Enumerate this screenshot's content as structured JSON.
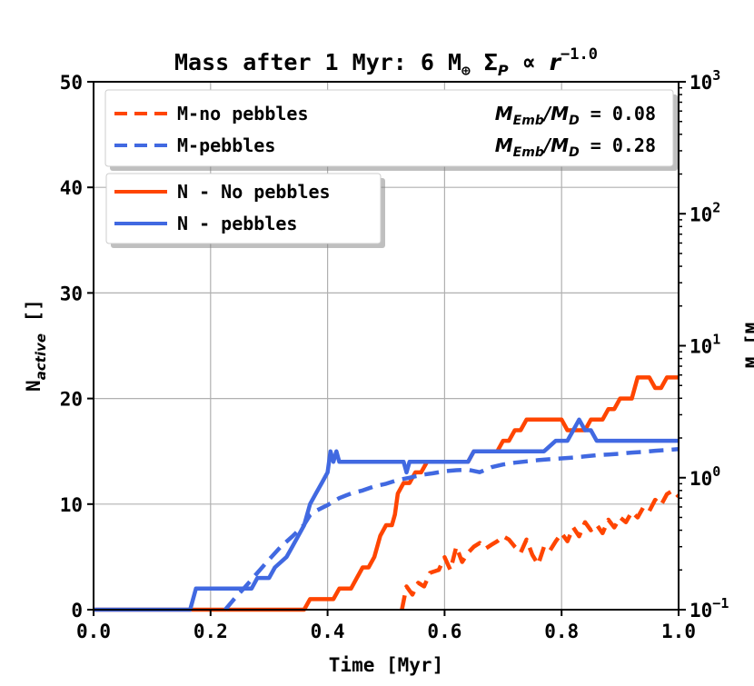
{
  "chart_data": {
    "type": "line",
    "title": {
      "prefix": "Mass after 1 Myr: 6 M",
      "sub": "⊕",
      "mid": " Σ",
      "sigma_sub": "P",
      "propto": " ∝ ",
      "var": "r",
      "exponent": "−1.0"
    },
    "xlabel": "Time [Myr]",
    "ylabel": {
      "main": "N",
      "sub": "active",
      "unit": " []"
    },
    "y2label": "M [M",
    "xlim": [
      0.0,
      1.0
    ],
    "ylim": [
      0,
      50
    ],
    "y2lim": [
      0.1,
      1000
    ],
    "y2scale": "log",
    "grid": true,
    "x_ticks": [
      "0.0",
      "0.2",
      "0.4",
      "0.6",
      "0.8",
      "1.0"
    ],
    "y_ticks": [
      "0",
      "10",
      "20",
      "30",
      "40",
      "50"
    ],
    "y2_ticks": [
      {
        "base": "10",
        "exp": "−1"
      },
      {
        "base": "10",
        "exp": "0"
      },
      {
        "base": "10",
        "exp": "1"
      },
      {
        "base": "10",
        "exp": "2"
      },
      {
        "base": "10",
        "exp": "3"
      }
    ],
    "colors": {
      "no_pebbles": "#ff4500",
      "pebbles": "#4169e1"
    },
    "legend_mass": {
      "placement": "top-left",
      "entries": [
        {
          "label": "M-no pebbles",
          "color": "#ff4500",
          "ratio_value": "0.08"
        },
        {
          "label": "M-pebbles",
          "color": "#4169e1",
          "ratio_value": "0.28"
        }
      ],
      "ratio_prefix": "M",
      "ratio_num_sub": "Emb",
      "ratio_den": "/M",
      "ratio_den_sub": "D",
      "ratio_eq": " = "
    },
    "legend_n": {
      "placement": "upper-left",
      "entries": [
        {
          "label": "N - No pebbles",
          "color": "#ff4500"
        },
        {
          "label": "N - pebbles",
          "color": "#4169e1"
        }
      ]
    },
    "series": [
      {
        "name": "N - No pebbles",
        "axis": "left",
        "style": "solid",
        "color": "#ff4500",
        "x": [
          0,
          0.36,
          0.37,
          0.41,
          0.42,
          0.44,
          0.45,
          0.46,
          0.47,
          0.48,
          0.49,
          0.5,
          0.51,
          0.515,
          0.52,
          0.53,
          0.54,
          0.55,
          0.56,
          0.57,
          0.58,
          0.59,
          0.64,
          0.65,
          0.69,
          0.7,
          0.71,
          0.72,
          0.73,
          0.74,
          0.8,
          0.81,
          0.84,
          0.85,
          0.87,
          0.88,
          0.89,
          0.9,
          0.92,
          0.93,
          0.95,
          0.96,
          0.97,
          0.98,
          1.0
        ],
        "y": [
          0,
          0,
          1,
          1,
          2,
          2,
          3,
          4,
          4,
          5,
          7,
          8,
          8,
          9,
          11,
          12,
          12,
          13,
          13,
          14,
          14,
          14,
          14,
          15,
          15,
          16,
          16,
          17,
          17,
          18,
          18,
          17,
          17,
          18,
          18,
          19,
          19,
          20,
          20,
          22,
          22,
          21,
          21,
          22,
          22
        ]
      },
      {
        "name": "N - pebbles",
        "axis": "left",
        "style": "solid",
        "color": "#4169e1",
        "x": [
          0,
          0.165,
          0.175,
          0.24,
          0.25,
          0.27,
          0.28,
          0.3,
          0.31,
          0.33,
          0.34,
          0.35,
          0.36,
          0.37,
          0.38,
          0.39,
          0.4,
          0.405,
          0.41,
          0.415,
          0.42,
          0.43,
          0.53,
          0.535,
          0.54,
          0.545,
          0.55,
          0.64,
          0.65,
          0.76,
          0.77,
          0.79,
          0.8,
          0.81,
          0.82,
          0.83,
          0.84,
          0.85,
          0.86,
          0.87,
          0.88,
          1.0
        ],
        "y": [
          0,
          0,
          2,
          2,
          2,
          2,
          3,
          3,
          4,
          5,
          6,
          7,
          8,
          10,
          11,
          12,
          13,
          15,
          14,
          15,
          14,
          14,
          14,
          13,
          14,
          14,
          14,
          14,
          15,
          15,
          15,
          16,
          16,
          16,
          17,
          18,
          17,
          17,
          16,
          16,
          16,
          16
        ]
      },
      {
        "name": "M-pebbles",
        "axis": "right",
        "style": "dashed",
        "color": "#4169e1",
        "x": [
          0.225,
          0.24,
          0.26,
          0.28,
          0.3,
          0.32,
          0.34,
          0.36,
          0.37,
          0.38,
          0.4,
          0.42,
          0.44,
          0.46,
          0.48,
          0.5,
          0.52,
          0.54,
          0.56,
          0.58,
          0.6,
          0.62,
          0.64,
          0.66,
          0.68,
          0.7,
          0.72,
          0.74,
          0.76,
          0.78,
          0.8,
          0.82,
          0.84,
          0.86,
          0.88,
          0.9,
          0.92,
          0.94,
          0.96,
          0.98,
          1.0
        ],
        "y": [
          0.1,
          0.12,
          0.15,
          0.19,
          0.24,
          0.3,
          0.36,
          0.44,
          0.52,
          0.56,
          0.62,
          0.7,
          0.76,
          0.8,
          0.86,
          0.9,
          0.96,
          1.0,
          1.05,
          1.08,
          1.12,
          1.14,
          1.15,
          1.1,
          1.2,
          1.26,
          1.3,
          1.33,
          1.36,
          1.38,
          1.4,
          1.42,
          1.45,
          1.48,
          1.5,
          1.52,
          1.55,
          1.57,
          1.6,
          1.62,
          1.65
        ]
      },
      {
        "name": "M-no pebbles",
        "axis": "right",
        "style": "dashed",
        "color": "#ff4500",
        "x": [
          0.527,
          0.535,
          0.545,
          0.555,
          0.565,
          0.575,
          0.59,
          0.6,
          0.61,
          0.62,
          0.63,
          0.64,
          0.65,
          0.66,
          0.67,
          0.68,
          0.69,
          0.7,
          0.71,
          0.72,
          0.73,
          0.74,
          0.75,
          0.76,
          0.77,
          0.78,
          0.79,
          0.8,
          0.81,
          0.82,
          0.83,
          0.84,
          0.85,
          0.86,
          0.87,
          0.88,
          0.89,
          0.9,
          0.91,
          0.92,
          0.93,
          0.94,
          0.95,
          0.96,
          0.97,
          0.98,
          0.99,
          1.0
        ],
        "y": [
          0.1,
          0.15,
          0.13,
          0.16,
          0.15,
          0.19,
          0.2,
          0.25,
          0.2,
          0.3,
          0.23,
          0.27,
          0.3,
          0.32,
          0.29,
          0.31,
          0.33,
          0.36,
          0.34,
          0.3,
          0.27,
          0.34,
          0.26,
          0.22,
          0.3,
          0.28,
          0.33,
          0.38,
          0.33,
          0.42,
          0.36,
          0.46,
          0.4,
          0.44,
          0.38,
          0.48,
          0.42,
          0.5,
          0.46,
          0.55,
          0.5,
          0.6,
          0.56,
          0.68,
          0.62,
          0.75,
          0.8,
          0.72
        ]
      }
    ]
  }
}
